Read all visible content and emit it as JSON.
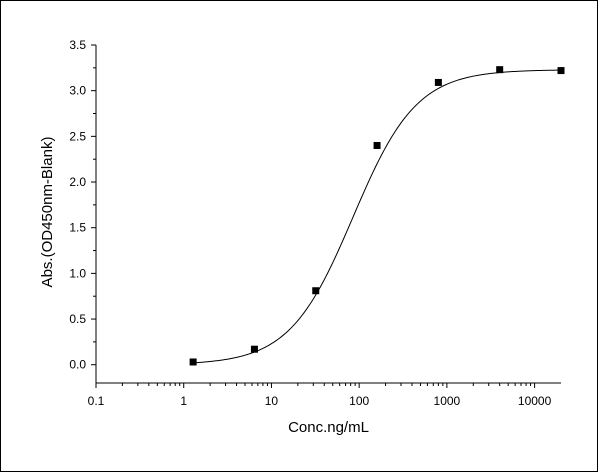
{
  "chart_data": {
    "type": "scatter",
    "title": "",
    "xlabel": "Conc.ng/mL",
    "ylabel": "Abs.(OD450nm-Blank)",
    "xscale": "log",
    "xlim": [
      0.1,
      20000
    ],
    "ylim": [
      -0.2,
      3.5
    ],
    "grid": false,
    "legend": "none",
    "x_ticks": [
      {
        "value": 0.1,
        "label": "0.1"
      },
      {
        "value": 1,
        "label": "1"
      },
      {
        "value": 10,
        "label": "10"
      },
      {
        "value": 100,
        "label": "100"
      },
      {
        "value": 1000,
        "label": "1000"
      },
      {
        "value": 10000,
        "label": "10000"
      }
    ],
    "y_ticks": [
      {
        "value": 0.0,
        "label": "0.0"
      },
      {
        "value": 0.5,
        "label": "0.5"
      },
      {
        "value": 1.0,
        "label": "1.0"
      },
      {
        "value": 1.5,
        "label": "1.5"
      },
      {
        "value": 2.0,
        "label": "2.0"
      },
      {
        "value": 2.5,
        "label": "2.5"
      },
      {
        "value": 3.0,
        "label": "3.0"
      },
      {
        "value": 3.5,
        "label": "3.5"
      }
    ],
    "series": [
      {
        "points": [
          {
            "x": 1.28,
            "y": 0.03
          },
          {
            "x": 6.4,
            "y": 0.17
          },
          {
            "x": 32,
            "y": 0.81
          },
          {
            "x": 160,
            "y": 2.4
          },
          {
            "x": 800,
            "y": 3.09
          },
          {
            "x": 4000,
            "y": 3.23
          },
          {
            "x": 20000,
            "y": 3.22
          }
        ],
        "fit": {
          "model": "4PL",
          "bottom": 0.0,
          "top": 3.23,
          "ec50": 85,
          "hill": 1.2
        },
        "color": "#000000"
      }
    ]
  }
}
